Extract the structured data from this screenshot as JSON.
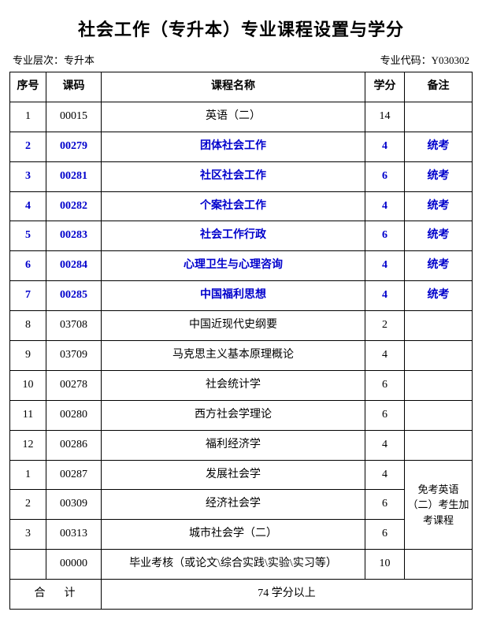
{
  "title": "社会工作（专升本）专业课程设置与学分",
  "meta": {
    "level_label": "专业层次：专升本",
    "code_label": "专业代码：Y030302"
  },
  "headers": {
    "seq": "序号",
    "code": "课码",
    "name": "课程名称",
    "credit": "学分",
    "note": "备注"
  },
  "rows": [
    {
      "seq": "1",
      "code": "00015",
      "name": "英语（二）",
      "credit": "14",
      "note": "",
      "hl": false
    },
    {
      "seq": "2",
      "code": "00279",
      "name": "团体社会工作",
      "credit": "4",
      "note": "统考",
      "hl": true
    },
    {
      "seq": "3",
      "code": "00281",
      "name": "社区社会工作",
      "credit": "6",
      "note": "统考",
      "hl": true
    },
    {
      "seq": "4",
      "code": "00282",
      "name": "个案社会工作",
      "credit": "4",
      "note": "统考",
      "hl": true
    },
    {
      "seq": "5",
      "code": "00283",
      "name": "社会工作行政",
      "credit": "6",
      "note": "统考",
      "hl": true
    },
    {
      "seq": "6",
      "code": "00284",
      "name": "心理卫生与心理咨询",
      "credit": "4",
      "note": "统考",
      "hl": true
    },
    {
      "seq": "7",
      "code": "00285",
      "name": "中国福利思想",
      "credit": "4",
      "note": "统考",
      "hl": true
    },
    {
      "seq": "8",
      "code": "03708",
      "name": "中国近现代史纲要",
      "credit": "2",
      "note": "",
      "hl": false
    },
    {
      "seq": "9",
      "code": "03709",
      "name": "马克思主义基本原理概论",
      "credit": "4",
      "note": "",
      "hl": false
    },
    {
      "seq": "10",
      "code": "00278",
      "name": "社会统计学",
      "credit": "6",
      "note": "",
      "hl": false
    },
    {
      "seq": "11",
      "code": "00280",
      "name": "西方社会学理论",
      "credit": "6",
      "note": "",
      "hl": false
    },
    {
      "seq": "12",
      "code": "00286",
      "name": "福利经济学",
      "credit": "4",
      "note": "",
      "hl": false
    }
  ],
  "group_note": "免考英语（二）考生加考课程",
  "group_rows": [
    {
      "seq": "1",
      "code": "00287",
      "name": "发展社会学",
      "credit": "4"
    },
    {
      "seq": "2",
      "code": "00309",
      "name": "经济社会学",
      "credit": "6"
    },
    {
      "seq": "3",
      "code": "00313",
      "name": "城市社会学（二）",
      "credit": "6"
    }
  ],
  "final_row": {
    "seq": "",
    "code": "00000",
    "name": "毕业考核（或论文\\综合实践\\实验\\实习等）",
    "credit": "10",
    "note": ""
  },
  "total": {
    "label": "合计",
    "value": "74 学分以上"
  },
  "colors": {
    "text": "#000000",
    "highlight": "#0000cc",
    "border": "#000000",
    "background": "#ffffff"
  }
}
